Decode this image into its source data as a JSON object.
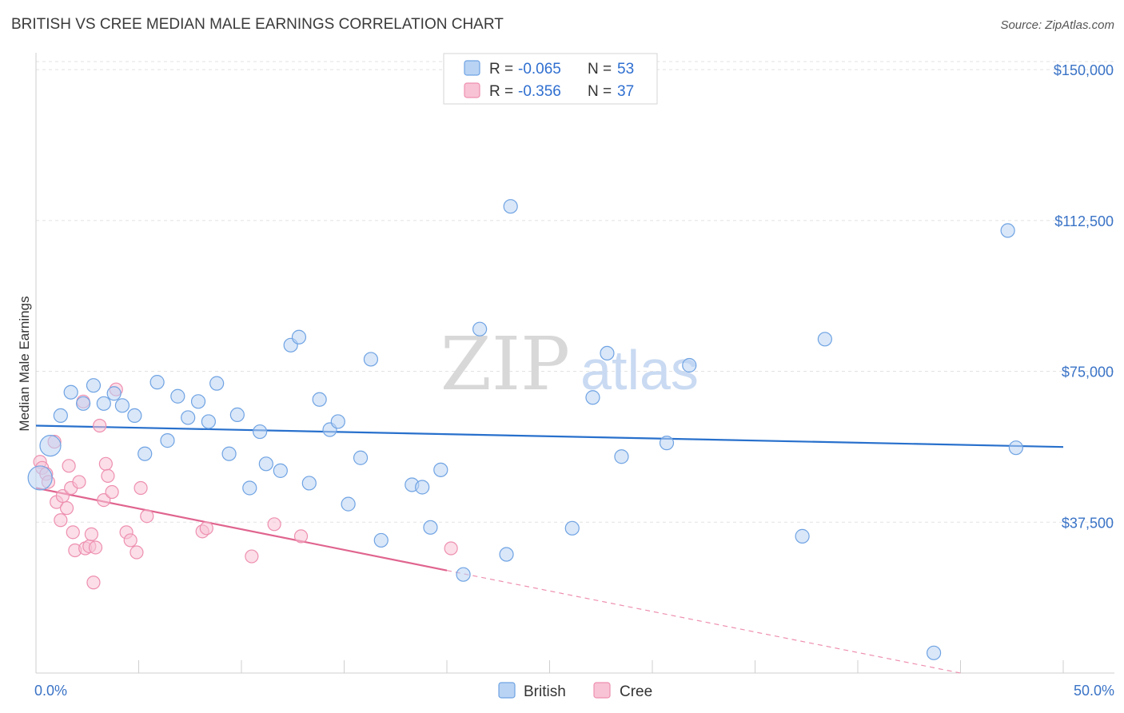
{
  "header": {
    "title": "BRITISH VS CREE MEDIAN MALE EARNINGS CORRELATION CHART",
    "source": "Source: ZipAtlas.com"
  },
  "watermark": {
    "part1": "ZIP",
    "part2": "atlas"
  },
  "colors": {
    "british": "#6fa3e3",
    "british_fill": "#b9d3f4",
    "british_line": "#2870cc",
    "cree": "#ee8fb0",
    "cree_fill": "#f8c3d5",
    "cree_line": "#e0648f",
    "tick": "#3a73c6"
  },
  "legend": {
    "rows": [
      {
        "r_label": "R = ",
        "r_value": "-0.065",
        "n_label": "N = ",
        "n_value": "53"
      },
      {
        "r_label": "R = ",
        "r_value": "-0.356",
        "n_label": "N = ",
        "n_value": "37"
      }
    ],
    "bottom": [
      "British",
      "Cree"
    ]
  },
  "chart_data": {
    "type": "scatter",
    "title": "BRITISH VS CREE MEDIAN MALE EARNINGS CORRELATION CHART",
    "xlabel": "",
    "ylabel": "Median Male Earnings",
    "xlim": [
      0,
      50
    ],
    "ylim": [
      0,
      153000
    ],
    "x_tick_labels": [
      "0.0%",
      "50.0%"
    ],
    "y_ticks": [
      37500,
      75000,
      112500,
      150000
    ],
    "y_tick_labels": [
      "$37,500",
      "$75,000",
      "$112,500",
      "$150,000"
    ],
    "grid": true,
    "legend_position": "top-center",
    "series": [
      {
        "name": "British",
        "r": -0.065,
        "n": 53,
        "trend": {
          "x": [
            0,
            50
          ],
          "y": [
            61500,
            56200
          ]
        },
        "points": [
          [
            0.2,
            48500
          ],
          [
            0.7,
            56500
          ],
          [
            1.2,
            64000
          ],
          [
            1.7,
            69800
          ],
          [
            2.3,
            67000
          ],
          [
            2.8,
            71500
          ],
          [
            3.3,
            67000
          ],
          [
            3.8,
            69500
          ],
          [
            4.2,
            66500
          ],
          [
            4.8,
            64000
          ],
          [
            5.3,
            54500
          ],
          [
            5.9,
            72300
          ],
          [
            6.4,
            57800
          ],
          [
            6.9,
            68800
          ],
          [
            7.4,
            63500
          ],
          [
            7.9,
            67500
          ],
          [
            8.4,
            62500
          ],
          [
            8.8,
            72000
          ],
          [
            9.4,
            54500
          ],
          [
            9.8,
            64200
          ],
          [
            10.4,
            46000
          ],
          [
            10.9,
            60000
          ],
          [
            11.2,
            52000
          ],
          [
            11.9,
            50300
          ],
          [
            12.4,
            81500
          ],
          [
            12.8,
            83500
          ],
          [
            13.3,
            47200
          ],
          [
            13.8,
            68000
          ],
          [
            14.3,
            60500
          ],
          [
            14.7,
            62500
          ],
          [
            15.2,
            42000
          ],
          [
            15.8,
            53500
          ],
          [
            16.3,
            78000
          ],
          [
            16.8,
            33000
          ],
          [
            18.3,
            46800
          ],
          [
            18.8,
            46200
          ],
          [
            19.2,
            36200
          ],
          [
            19.7,
            50500
          ],
          [
            20.8,
            24500
          ],
          [
            21.6,
            85500
          ],
          [
            22.9,
            29500
          ],
          [
            23.1,
            116000
          ],
          [
            26.1,
            36000
          ],
          [
            27.1,
            68500
          ],
          [
            27.8,
            79500
          ],
          [
            28.5,
            53800
          ],
          [
            30.7,
            57200
          ],
          [
            31.8,
            76500
          ],
          [
            37.3,
            34000
          ],
          [
            38.4,
            83000
          ],
          [
            43.7,
            5000
          ],
          [
            47.3,
            110000
          ],
          [
            47.7,
            56000
          ]
        ]
      },
      {
        "name": "Cree",
        "r": -0.356,
        "n": 37,
        "trend": {
          "x": [
            0,
            20
          ],
          "y": [
            46000,
            25500
          ]
        },
        "trend_dashed": {
          "x": [
            20,
            45
          ],
          "y": [
            25500,
            0
          ]
        },
        "points": [
          [
            0.2,
            52500
          ],
          [
            0.3,
            51000
          ],
          [
            0.5,
            49500
          ],
          [
            0.6,
            47500
          ],
          [
            0.9,
            57500
          ],
          [
            1.0,
            42500
          ],
          [
            1.2,
            38000
          ],
          [
            1.3,
            44000
          ],
          [
            1.5,
            41000
          ],
          [
            1.6,
            51500
          ],
          [
            1.7,
            46000
          ],
          [
            1.8,
            35000
          ],
          [
            1.9,
            30500
          ],
          [
            2.1,
            47500
          ],
          [
            2.3,
            67500
          ],
          [
            2.4,
            31000
          ],
          [
            2.6,
            31500
          ],
          [
            2.7,
            34500
          ],
          [
            2.8,
            22500
          ],
          [
            2.9,
            31200
          ],
          [
            3.1,
            61500
          ],
          [
            3.3,
            43000
          ],
          [
            3.4,
            52000
          ],
          [
            3.5,
            49000
          ],
          [
            3.7,
            45000
          ],
          [
            3.9,
            70500
          ],
          [
            4.4,
            35000
          ],
          [
            4.6,
            33000
          ],
          [
            4.9,
            30000
          ],
          [
            5.1,
            46000
          ],
          [
            5.4,
            39000
          ],
          [
            8.1,
            35200
          ],
          [
            8.3,
            36000
          ],
          [
            10.5,
            29000
          ],
          [
            11.6,
            37000
          ],
          [
            12.9,
            34000
          ],
          [
            20.2,
            31000
          ]
        ]
      }
    ]
  }
}
